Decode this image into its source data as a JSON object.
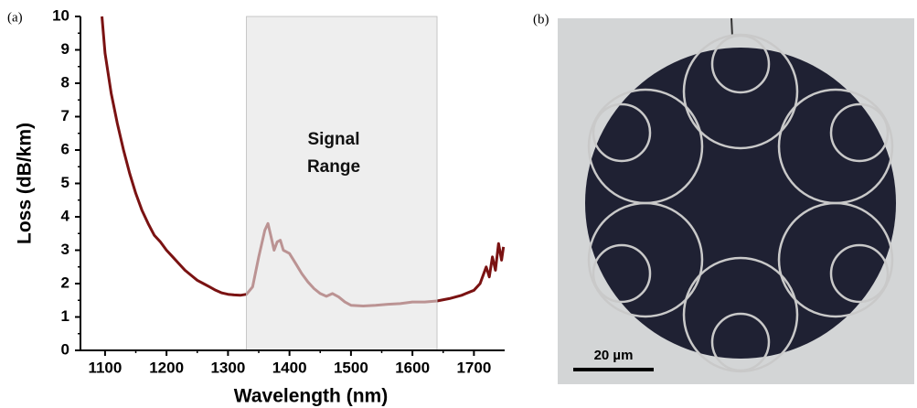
{
  "panels": {
    "a": "(a)",
    "b": "(b)",
    "scale_bar": "20 µm"
  },
  "chart_data": {
    "type": "line",
    "x_label": "Wavelength (nm)",
    "y_label": "Loss (dB/km)",
    "annotation": "Signal Range",
    "shade": [
      1330,
      1640
    ],
    "color": "#7a1212",
    "x": [
      1095,
      1100,
      1110,
      1120,
      1130,
      1140,
      1150,
      1160,
      1170,
      1180,
      1190,
      1200,
      1210,
      1220,
      1230,
      1240,
      1250,
      1260,
      1270,
      1280,
      1290,
      1300,
      1310,
      1320,
      1330,
      1340,
      1350,
      1360,
      1365,
      1370,
      1375,
      1380,
      1385,
      1390,
      1395,
      1400,
      1410,
      1420,
      1430,
      1440,
      1450,
      1460,
      1470,
      1480,
      1490,
      1500,
      1520,
      1540,
      1560,
      1580,
      1600,
      1620,
      1640,
      1660,
      1680,
      1700,
      1710,
      1720,
      1725,
      1730,
      1735,
      1740,
      1745,
      1748
    ],
    "values": [
      10,
      8.9,
      7.7,
      6.8,
      6.0,
      5.3,
      4.7,
      4.2,
      3.8,
      3.45,
      3.25,
      3.0,
      2.8,
      2.6,
      2.4,
      2.25,
      2.1,
      2.0,
      1.9,
      1.8,
      1.72,
      1.68,
      1.66,
      1.65,
      1.68,
      1.9,
      2.8,
      3.6,
      3.8,
      3.4,
      3.0,
      3.25,
      3.3,
      3.0,
      2.95,
      2.9,
      2.6,
      2.3,
      2.05,
      1.85,
      1.7,
      1.62,
      1.7,
      1.6,
      1.45,
      1.35,
      1.33,
      1.35,
      1.38,
      1.4,
      1.45,
      1.45,
      1.48,
      1.55,
      1.65,
      1.8,
      2.0,
      2.5,
      2.2,
      2.8,
      2.4,
      3.2,
      2.7,
      3.1
    ],
    "xlim": [
      1060,
      1750
    ],
    "ylim": [
      0,
      10
    ],
    "xticks": [
      1100,
      1200,
      1300,
      1400,
      1500,
      1600,
      1700
    ],
    "yticks": [
      0,
      1,
      2,
      3,
      4,
      5,
      6,
      7,
      8,
      9,
      10
    ]
  }
}
